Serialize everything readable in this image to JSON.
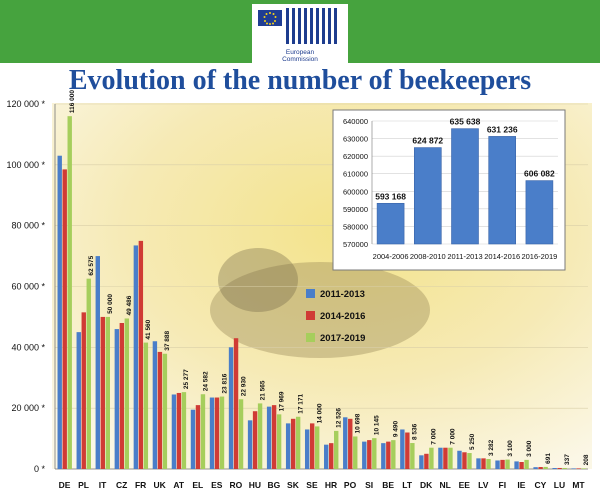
{
  "header": {
    "org_name": "European\nCommission"
  },
  "title": "Evolution of the number of beekeepers",
  "colors": {
    "header_green": "#46a33e",
    "title_blue": "#1f4e9c",
    "series_2011_2013": "#4a7ec9",
    "series_2014_2016": "#d03b35",
    "series_2017_2019": "#a6ce5c",
    "inset_bar": "#4a7ec9"
  },
  "chart_data": [
    {
      "type": "bar",
      "title": "",
      "xlabel": "",
      "ylabel": "",
      "ylim": [
        0,
        120000
      ],
      "yticks": [
        0,
        20000,
        40000,
        60000,
        80000,
        100000,
        120000
      ],
      "ytick_labels": [
        "0 *",
        "20 000 *",
        "40 000 *",
        "60 000 *",
        "80 000 *",
        "100 000 *",
        "120 000 *"
      ],
      "categories": [
        "DE",
        "PL",
        "IT",
        "CZ",
        "FR",
        "UK",
        "AT",
        "EL",
        "ES",
        "RO",
        "HU",
        "BG",
        "SK",
        "SE",
        "HR",
        "PO",
        "SI",
        "BE",
        "LT",
        "DK",
        "NL",
        "EE",
        "LV",
        "FI",
        "IE",
        "CY",
        "LU",
        "MT"
      ],
      "series": [
        {
          "name": "2011-2013",
          "values": [
            103000,
            45000,
            70000,
            46000,
            73500,
            42000,
            24500,
            19500,
            23500,
            40000,
            16000,
            20500,
            15000,
            13000,
            8000,
            17000,
            9000,
            8500,
            13000,
            4500,
            7000,
            6000,
            3500,
            2800,
            2500,
            600,
            330,
            200
          ]
        },
        {
          "name": "2014-2016",
          "values": [
            98500,
            51500,
            50000,
            48000,
            75000,
            38500,
            25000,
            21000,
            23500,
            43000,
            19000,
            21000,
            16500,
            15000,
            8500,
            16500,
            9500,
            9000,
            12000,
            5000,
            7000,
            5500,
            3500,
            3000,
            2300,
            650,
            335,
            205
          ]
        },
        {
          "name": "2017-2019",
          "values": [
            116000,
            62575,
            50000,
            49486,
            41560,
            37888,
            25277,
            24582,
            23816,
            22930,
            21565,
            17969,
            17171,
            14000,
            12526,
            10698,
            10145,
            9490,
            8536,
            7000,
            7000,
            5250,
            3282,
            3100,
            3000,
            691,
            337,
            208
          ]
        }
      ],
      "data_labels": [
        "116 000",
        "62 575",
        "50 000",
        "49 486",
        "41 560",
        "37 888",
        "25 277",
        "24 582",
        "23 816",
        "22 930",
        "21 565",
        "17 969",
        "17 171",
        "14 000",
        "12 526",
        "10 698",
        "10 145",
        "9 490",
        "8 536",
        "7 000",
        "7 000",
        "5 250",
        "3 282",
        "3 100",
        "3 000",
        "691",
        "337",
        "208"
      ],
      "legend": "center-right"
    },
    {
      "type": "bar",
      "title": "",
      "categories": [
        "2004-2006",
        "2008-2010",
        "2011-2013",
        "2014-2016",
        "2016-2019"
      ],
      "values": [
        593168,
        624872,
        635638,
        631236,
        606082
      ],
      "data_labels": [
        "593 168",
        "624 872",
        "635 638",
        "631 236",
        "606 082"
      ],
      "ylim": [
        570000,
        640000
      ],
      "yticks": [
        570000,
        580000,
        590000,
        600000,
        610000,
        620000,
        630000,
        640000
      ],
      "ytick_labels": [
        "570000",
        "580000",
        "590000",
        "600000",
        "610000",
        "620000",
        "630000",
        "640000"
      ],
      "legend": "none"
    }
  ]
}
